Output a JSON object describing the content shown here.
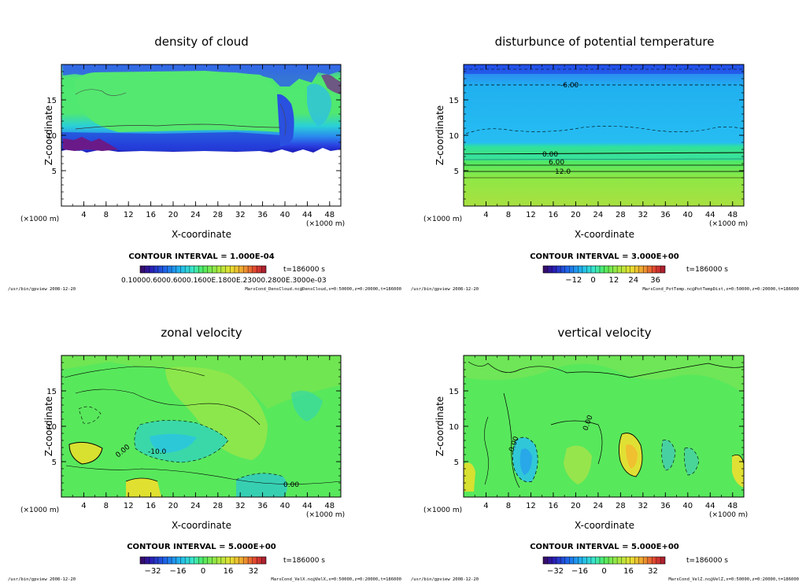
{
  "chart_data": [
    {
      "type": "heatmap",
      "title": "density of cloud",
      "xlabel": "X-coordinate",
      "ylabel": "Z-coordinate",
      "x_unit_label": "(×1000 m)",
      "x_unit_label_right": "(×1000 m)",
      "xlim": [
        0,
        50
      ],
      "ylim": [
        0,
        20
      ],
      "x_ticks": [
        "4",
        "8",
        "12",
        "16",
        "20",
        "24",
        "28",
        "32",
        "36",
        "40",
        "44",
        "48"
      ],
      "y_ticks": [
        "5",
        "10",
        "15"
      ],
      "contour_interval": "CONTOUR INTERVAL = 1.000E-04",
      "time_label": "t=186000  s",
      "colorbar_labels": [
        "0.10000E-05",
        "0.10000E-03",
        "0.18000E-03",
        "0.20000E-03",
        "0.28000E-03",
        "0.30000E-03"
      ],
      "colorbar_overlap_text": "0.10000.6000.6000.1600E.1800E.23000.2800E.3000e-03",
      "cloud_top_z": 19.5,
      "cloud_base_z": 8,
      "contour_labels": [],
      "footer_left": "/usr/bin/gpview   2008-12-20",
      "footer_right": "MarsCond_DensCloud.nc@DensCloud,x=0:50000,z=0:20000,t=186000"
    },
    {
      "type": "heatmap",
      "title": "disturbunce of potential temperature",
      "xlabel": "X-coordinate",
      "ylabel": "Z-coordinate",
      "x_unit_label": "(×1000 m)",
      "x_unit_label_right": "(×1000 m)",
      "xlim": [
        0,
        50
      ],
      "ylim": [
        0,
        20
      ],
      "x_ticks": [
        "4",
        "8",
        "12",
        "16",
        "20",
        "24",
        "28",
        "32",
        "36",
        "40",
        "44",
        "48"
      ],
      "y_ticks": [
        "5",
        "10",
        "15"
      ],
      "contour_interval": "CONTOUR INTERVAL = 3.000E+00",
      "time_label": "t=186000  s",
      "colorbar_labels": [
        "−12",
        "0",
        "12",
        "24",
        "36"
      ],
      "contour_labels": [
        "-6.00",
        "0.00",
        "6.00",
        "12.0"
      ],
      "footer_left": "/usr/bin/gpview   2008-12-20",
      "footer_right": "MarsCond_PotTemp.nc@PotTempDist,x=0:50000,z=0:20000,t=186000"
    },
    {
      "type": "heatmap",
      "title": "zonal velocity",
      "xlabel": "X-coordinate",
      "ylabel": "Z-coordinate",
      "x_unit_label": "(×1000 m)",
      "x_unit_label_right": "(×1000 m)",
      "xlim": [
        0,
        50
      ],
      "ylim": [
        0,
        20
      ],
      "x_ticks": [
        "4",
        "8",
        "12",
        "16",
        "20",
        "24",
        "28",
        "32",
        "36",
        "40",
        "44",
        "48"
      ],
      "y_ticks": [
        "5",
        "10",
        "15"
      ],
      "contour_interval": "CONTOUR INTERVAL = 5.000E+00",
      "time_label": "t=186000  s",
      "colorbar_labels": [
        "−32",
        "−16",
        "0",
        "16",
        "32"
      ],
      "contour_labels": [
        "-10.0",
        "0.00",
        "0.00"
      ],
      "footer_left": "/usr/bin/gpview   2008-12-20",
      "footer_right": "MarsCond_VelX.nc@VelX,x=0:50000,z=0:20000,t=186000"
    },
    {
      "type": "heatmap",
      "title": "vertical velocity",
      "xlabel": "X-coordinate",
      "ylabel": "Z-coordinate",
      "x_unit_label": "(×1000 m)",
      "x_unit_label_right": "(×1000 m)",
      "xlim": [
        0,
        50
      ],
      "ylim": [
        0,
        20
      ],
      "x_ticks": [
        "4",
        "8",
        "12",
        "16",
        "20",
        "24",
        "28",
        "32",
        "36",
        "40",
        "44",
        "48"
      ],
      "y_ticks": [
        "5",
        "10",
        "15"
      ],
      "contour_interval": "CONTOUR INTERVAL = 5.000E+00",
      "time_label": "t=186000  s",
      "colorbar_labels": [
        "−32",
        "−16",
        "0",
        "16",
        "32"
      ],
      "contour_labels": [
        "0.00",
        "0.00"
      ],
      "footer_left": "/usr/bin/gpview   2008-12-20",
      "footer_right": "MarsCond_VelZ.nc@VelZ,x=0:50000,z=0:20000,t=186000"
    }
  ],
  "colors": {
    "frame": "#000000",
    "green": "#55e85a",
    "green_light": "#8eea55",
    "yellow_green": "#b8e23a",
    "cyan": "#34c8f0",
    "sky": "#2a9ee8",
    "blue": "#1e5fe6",
    "deep_blue": "#2020c8",
    "purple": "#7a1a8c"
  }
}
